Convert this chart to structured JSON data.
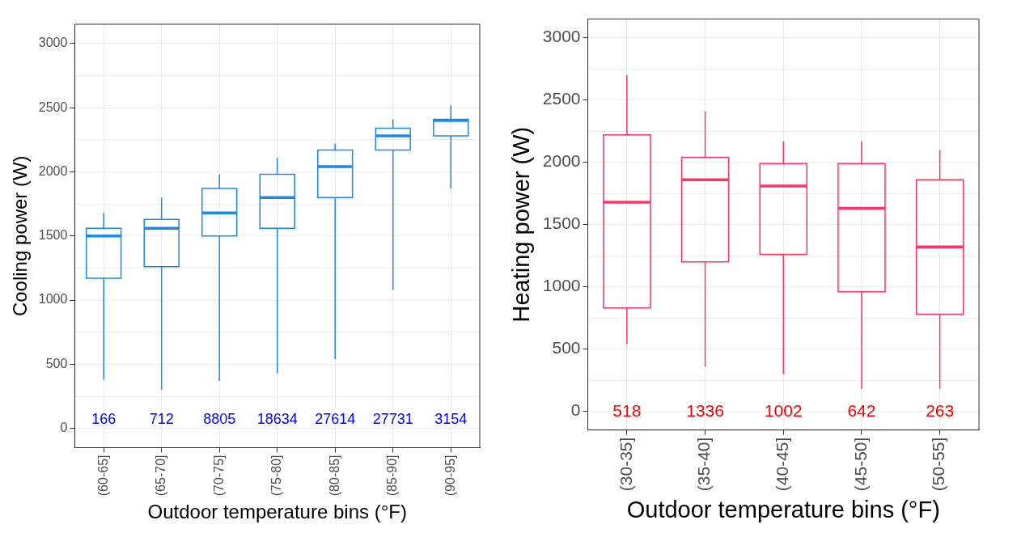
{
  "chart_data": [
    {
      "type": "box",
      "xlabel": "Outdoor temperature bins (°F)",
      "ylabel": "Cooling power (W)",
      "categories": [
        "(60-65]",
        "(65-70]",
        "(70-75]",
        "(75-80]",
        "(80-85]",
        "(85-90]",
        "(90-95]"
      ],
      "series": [
        {
          "color": "#1e88e5",
          "boxes": [
            {
              "low": 380,
              "q1": 1170,
              "median": 1500,
              "q3": 1560,
              "high": 1680
            },
            {
              "low": 300,
              "q1": 1260,
              "median": 1560,
              "q3": 1630,
              "high": 1800
            },
            {
              "low": 370,
              "q1": 1500,
              "median": 1680,
              "q3": 1870,
              "high": 1980
            },
            {
              "low": 430,
              "q1": 1560,
              "median": 1800,
              "q3": 1980,
              "high": 2110
            },
            {
              "low": 540,
              "q1": 1800,
              "median": 2040,
              "q3": 2170,
              "high": 2220
            },
            {
              "low": 1080,
              "q1": 2170,
              "median": 2280,
              "q3": 2340,
              "high": 2410
            },
            {
              "low": 1870,
              "q1": 2280,
              "median": 2400,
              "q3": 2410,
              "high": 2520
            }
          ]
        }
      ],
      "ylim": [
        -150,
        3150
      ],
      "yticks": [
        0,
        {
          "value": 250,
          "label": null
        },
        500,
        {
          "value": 750,
          "label": null
        },
        1000,
        {
          "value": 1250,
          "label": null
        },
        1500,
        {
          "value": 1750,
          "label": null
        },
        2000,
        {
          "value": 2250,
          "label": null
        },
        2500,
        {
          "value": 2750,
          "label": null
        },
        3000
      ],
      "grid": true,
      "annotations": [
        "166",
        "712",
        "8805",
        "18634",
        "27614",
        "27731",
        "3154"
      ]
    },
    {
      "type": "box",
      "xlabel": "Outdoor temperature bins (°F)",
      "ylabel": "Heating power (W)",
      "categories": [
        "(30-35]",
        "(35-40]",
        "(40-45]",
        "(45-50]",
        "(50-55]"
      ],
      "series": [
        {
          "color": "#ff3366",
          "boxes": [
            {
              "low": 540,
              "q1": 830,
              "median": 1680,
              "q3": 2220,
              "high": 2700
            },
            {
              "low": 360,
              "q1": 1200,
              "median": 1860,
              "q3": 2040,
              "high": 2410
            },
            {
              "low": 300,
              "q1": 1260,
              "median": 1810,
              "q3": 1990,
              "high": 2170
            },
            {
              "low": 180,
              "q1": 960,
              "median": 1630,
              "q3": 1990,
              "high": 2170
            },
            {
              "low": 180,
              "q1": 780,
              "median": 1320,
              "q3": 1860,
              "high": 2100
            }
          ]
        }
      ],
      "ylim": [
        -150,
        3150
      ],
      "yticks": [
        0,
        {
          "value": 250,
          "label": null
        },
        500,
        {
          "value": 750,
          "label": null
        },
        1000,
        {
          "value": 1250,
          "label": null
        },
        1500,
        {
          "value": 1750,
          "label": null
        },
        2000,
        {
          "value": 2250,
          "label": null
        },
        2500,
        {
          "value": 2750,
          "label": null
        },
        3000
      ],
      "grid": true,
      "annotations": [
        "518",
        "1336",
        "1002",
        "642",
        "263"
      ]
    }
  ]
}
